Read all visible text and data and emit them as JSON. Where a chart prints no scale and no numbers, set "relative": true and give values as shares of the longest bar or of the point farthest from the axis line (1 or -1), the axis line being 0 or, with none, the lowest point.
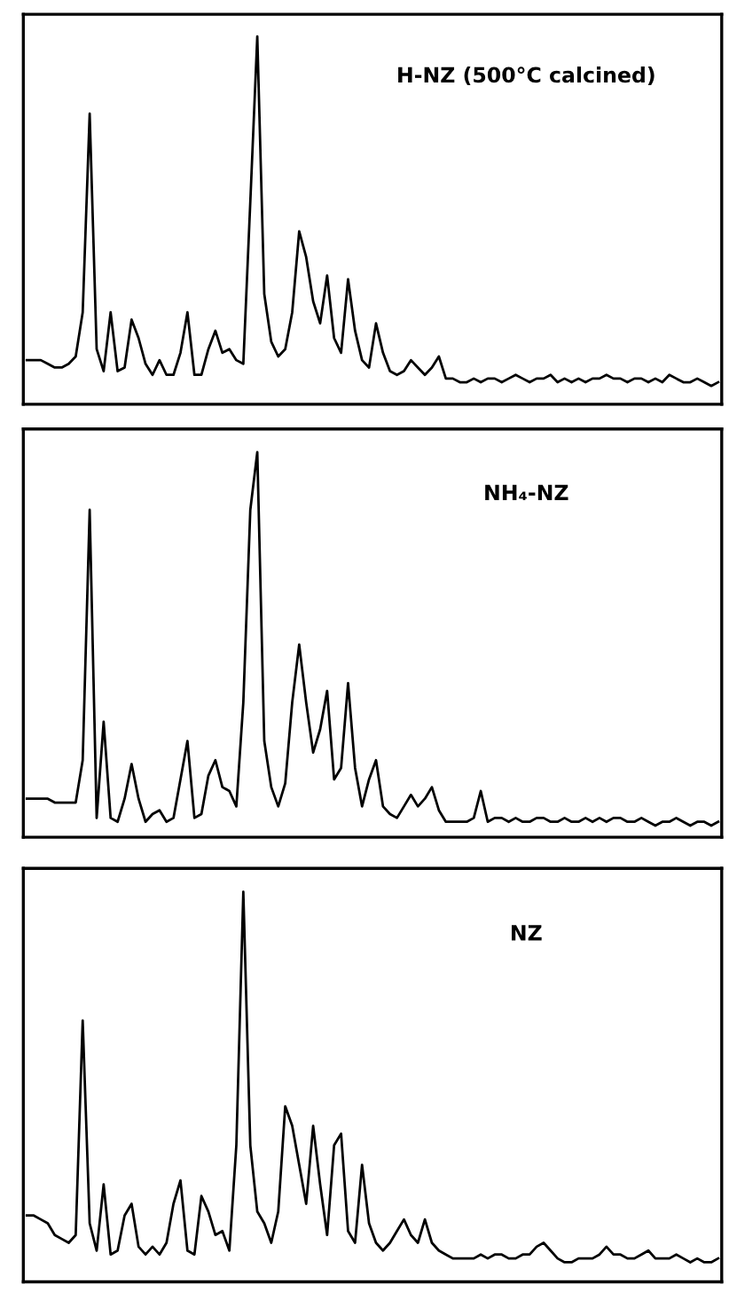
{
  "chart_data": [
    {
      "type": "line",
      "relative": true,
      "tick_labels": false,
      "categories": [
        null,
        null,
        null,
        null,
        null,
        null,
        null,
        null,
        null,
        null,
        null,
        null,
        null,
        null,
        null,
        null,
        null,
        null,
        null,
        null,
        null,
        null,
        null,
        null,
        null,
        null,
        null,
        null,
        null,
        null,
        null,
        null,
        null,
        null,
        null,
        null,
        null,
        null,
        null,
        null,
        null,
        null,
        null,
        null,
        null,
        null,
        null,
        null,
        null,
        null,
        null,
        null,
        null,
        null,
        null,
        null,
        null,
        null,
        null,
        null,
        null,
        null,
        null,
        null,
        null,
        null,
        null,
        null,
        null,
        null,
        null,
        null,
        null,
        null,
        null,
        null,
        null,
        null,
        null,
        null,
        null,
        null,
        null,
        null,
        null,
        null,
        null,
        null,
        null,
        null,
        null,
        null,
        null,
        null,
        null,
        null,
        null,
        null,
        null,
        null
      ],
      "series": [
        {
          "color": "#000000",
          "values": [
            0.12,
            0.12,
            0.12,
            0.11,
            0.1,
            0.1,
            0.11,
            0.13,
            0.25,
            0.79,
            0.15,
            0.09,
            0.25,
            0.09,
            0.1,
            0.23,
            0.18,
            0.11,
            0.08,
            0.12,
            0.08,
            0.08,
            0.14,
            0.25,
            0.08,
            0.08,
            0.15,
            0.2,
            0.14,
            0.15,
            0.12,
            0.11,
            0.55,
            1.0,
            0.3,
            0.17,
            0.13,
            0.15,
            0.25,
            0.47,
            0.4,
            0.28,
            0.22,
            0.35,
            0.18,
            0.14,
            0.34,
            0.2,
            0.12,
            0.1,
            0.22,
            0.14,
            0.09,
            0.08,
            0.09,
            0.12,
            0.1,
            0.08,
            0.1,
            0.13,
            0.07,
            0.07,
            0.06,
            0.06,
            0.07,
            0.06,
            0.07,
            0.07,
            0.06,
            0.07,
            0.08,
            0.07,
            0.06,
            0.07,
            0.07,
            0.08,
            0.06,
            0.07,
            0.06,
            0.07,
            0.06,
            0.07,
            0.07,
            0.08,
            0.07,
            0.07,
            0.06,
            0.07,
            0.07,
            0.06,
            0.07,
            0.06,
            0.08,
            0.07,
            0.06,
            0.06,
            0.07,
            0.06,
            0.05,
            0.06
          ]
        }
      ],
      "annotations": [
        "H-NZ (500°C calcined)"
      ]
    },
    {
      "type": "line",
      "relative": true,
      "tick_labels": false,
      "categories": [
        null,
        null,
        null,
        null,
        null,
        null,
        null,
        null,
        null,
        null,
        null,
        null,
        null,
        null,
        null,
        null,
        null,
        null,
        null,
        null,
        null,
        null,
        null,
        null,
        null,
        null,
        null,
        null,
        null,
        null,
        null,
        null,
        null,
        null,
        null,
        null,
        null,
        null,
        null,
        null,
        null,
        null,
        null,
        null,
        null,
        null,
        null,
        null,
        null,
        null,
        null,
        null,
        null,
        null,
        null,
        null,
        null,
        null,
        null,
        null,
        null,
        null,
        null,
        null,
        null,
        null,
        null,
        null,
        null,
        null,
        null,
        null,
        null,
        null,
        null,
        null,
        null,
        null,
        null,
        null,
        null,
        null,
        null,
        null,
        null,
        null,
        null,
        null,
        null,
        null,
        null,
        null,
        null,
        null,
        null,
        null,
        null,
        null,
        null,
        null
      ],
      "series": [
        {
          "color": "#000000",
          "values": [
            0.1,
            0.1,
            0.1,
            0.1,
            0.09,
            0.09,
            0.09,
            0.09,
            0.2,
            0.85,
            0.05,
            0.3,
            0.05,
            0.04,
            0.1,
            0.19,
            0.1,
            0.04,
            0.06,
            0.07,
            0.04,
            0.05,
            0.15,
            0.25,
            0.05,
            0.06,
            0.16,
            0.2,
            0.13,
            0.12,
            0.08,
            0.35,
            0.85,
            1.0,
            0.25,
            0.13,
            0.08,
            0.14,
            0.35,
            0.5,
            0.35,
            0.22,
            0.28,
            0.38,
            0.15,
            0.18,
            0.4,
            0.18,
            0.08,
            0.15,
            0.2,
            0.08,
            0.06,
            0.05,
            0.08,
            0.11,
            0.08,
            0.1,
            0.13,
            0.07,
            0.04,
            0.04,
            0.04,
            0.04,
            0.05,
            0.12,
            0.04,
            0.05,
            0.05,
            0.04,
            0.05,
            0.04,
            0.04,
            0.05,
            0.05,
            0.04,
            0.04,
            0.05,
            0.04,
            0.04,
            0.05,
            0.04,
            0.05,
            0.04,
            0.05,
            0.05,
            0.04,
            0.04,
            0.05,
            0.04,
            0.03,
            0.04,
            0.04,
            0.05,
            0.04,
            0.03,
            0.04,
            0.04,
            0.03,
            0.04
          ]
        }
      ],
      "annotations": [
        "NH₄-NZ"
      ]
    },
    {
      "type": "line",
      "relative": true,
      "tick_labels": false,
      "categories": [
        null,
        null,
        null,
        null,
        null,
        null,
        null,
        null,
        null,
        null,
        null,
        null,
        null,
        null,
        null,
        null,
        null,
        null,
        null,
        null,
        null,
        null,
        null,
        null,
        null,
        null,
        null,
        null,
        null,
        null,
        null,
        null,
        null,
        null,
        null,
        null,
        null,
        null,
        null,
        null,
        null,
        null,
        null,
        null,
        null,
        null,
        null,
        null,
        null,
        null,
        null,
        null,
        null,
        null,
        null,
        null,
        null,
        null,
        null,
        null,
        null,
        null,
        null,
        null,
        null,
        null,
        null,
        null,
        null,
        null,
        null,
        null,
        null,
        null,
        null,
        null,
        null,
        null,
        null,
        null,
        null,
        null,
        null,
        null,
        null,
        null,
        null,
        null,
        null,
        null,
        null,
        null,
        null,
        null,
        null,
        null,
        null,
        null,
        null,
        null
      ],
      "series": [
        {
          "color": "#000000",
          "values": [
            0.17,
            0.17,
            0.16,
            0.15,
            0.12,
            0.11,
            0.1,
            0.12,
            0.67,
            0.15,
            0.08,
            0.25,
            0.07,
            0.08,
            0.17,
            0.2,
            0.09,
            0.07,
            0.09,
            0.07,
            0.1,
            0.2,
            0.26,
            0.08,
            0.07,
            0.22,
            0.18,
            0.12,
            0.13,
            0.08,
            0.35,
            1.0,
            0.35,
            0.18,
            0.15,
            0.1,
            0.18,
            0.45,
            0.4,
            0.3,
            0.2,
            0.4,
            0.25,
            0.12,
            0.35,
            0.38,
            0.13,
            0.1,
            0.3,
            0.15,
            0.1,
            0.08,
            0.1,
            0.13,
            0.16,
            0.12,
            0.1,
            0.16,
            0.1,
            0.08,
            0.07,
            0.06,
            0.06,
            0.06,
            0.06,
            0.07,
            0.06,
            0.07,
            0.07,
            0.06,
            0.06,
            0.07,
            0.07,
            0.09,
            0.1,
            0.08,
            0.06,
            0.05,
            0.05,
            0.06,
            0.06,
            0.06,
            0.07,
            0.09,
            0.07,
            0.07,
            0.06,
            0.06,
            0.07,
            0.08,
            0.06,
            0.06,
            0.06,
            0.07,
            0.06,
            0.05,
            0.06,
            0.05,
            0.05,
            0.06
          ]
        }
      ],
      "annotations": [
        "NZ"
      ]
    }
  ]
}
